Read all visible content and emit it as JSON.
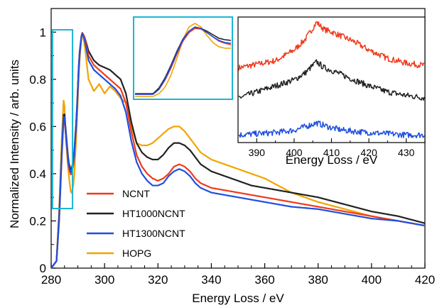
{
  "chart_data": [
    {
      "type": "line",
      "xlabel": "Energy Loss / eV",
      "ylabel": "Normalized Intensity / arb. units",
      "xlim": [
        280,
        420
      ],
      "ylim": [
        0,
        1.1
      ],
      "xticks": [
        "280",
        "300",
        "320",
        "340",
        "360",
        "380",
        "400",
        "420"
      ],
      "yticks": [
        "0",
        "0.2",
        "0.4",
        "0.6",
        "0.8",
        "1"
      ],
      "grid": false,
      "legend_position": "lower-left",
      "series": [
        {
          "name": "NCNT",
          "color": "#f03a1c",
          "x": [
            280,
            282,
            283,
            284,
            284.8,
            285.5,
            286.5,
            287.5,
            288.5,
            289.5,
            290.5,
            291.5,
            292.5,
            294,
            296,
            298,
            300,
            302,
            304,
            306,
            308,
            310,
            312,
            314,
            316,
            318,
            320,
            322,
            324,
            326,
            328,
            330,
            332,
            334,
            336,
            340,
            345,
            350,
            355,
            360,
            365,
            370,
            380,
            390,
            400,
            410,
            420
          ],
          "y": [
            0,
            0.03,
            0.2,
            0.48,
            0.66,
            0.56,
            0.43,
            0.39,
            0.45,
            0.62,
            0.88,
            1.0,
            0.98,
            0.9,
            0.86,
            0.84,
            0.82,
            0.8,
            0.78,
            0.76,
            0.7,
            0.58,
            0.48,
            0.43,
            0.4,
            0.38,
            0.37,
            0.38,
            0.4,
            0.43,
            0.44,
            0.43,
            0.41,
            0.38,
            0.36,
            0.34,
            0.33,
            0.32,
            0.31,
            0.3,
            0.29,
            0.28,
            0.26,
            0.24,
            0.22,
            0.2,
            0.18
          ]
        },
        {
          "name": "HT1000NCNT",
          "color": "#222222",
          "x": [
            280,
            282,
            283,
            284,
            284.8,
            285.5,
            286.5,
            287.5,
            288.5,
            289.5,
            290.5,
            291.5,
            292.5,
            294,
            296,
            298,
            300,
            302,
            304,
            306,
            308,
            310,
            312,
            314,
            316,
            318,
            320,
            322,
            324,
            326,
            328,
            330,
            332,
            334,
            336,
            340,
            345,
            350,
            355,
            360,
            365,
            370,
            380,
            390,
            400,
            410,
            420
          ],
          "y": [
            0,
            0.03,
            0.22,
            0.5,
            0.68,
            0.58,
            0.45,
            0.41,
            0.47,
            0.64,
            0.9,
            1.0,
            0.98,
            0.92,
            0.88,
            0.86,
            0.85,
            0.84,
            0.82,
            0.8,
            0.74,
            0.62,
            0.53,
            0.49,
            0.47,
            0.46,
            0.46,
            0.48,
            0.51,
            0.53,
            0.53,
            0.52,
            0.5,
            0.47,
            0.44,
            0.41,
            0.39,
            0.37,
            0.35,
            0.34,
            0.33,
            0.32,
            0.3,
            0.27,
            0.24,
            0.22,
            0.19
          ]
        },
        {
          "name": "HT1300NCNT",
          "color": "#1f4fe0",
          "x": [
            280,
            282,
            283,
            284,
            284.8,
            285.5,
            286.5,
            287.5,
            288.5,
            289.5,
            290.5,
            291.5,
            292.5,
            294,
            296,
            298,
            300,
            302,
            304,
            306,
            308,
            310,
            312,
            314,
            316,
            318,
            320,
            322,
            324,
            326,
            328,
            330,
            332,
            334,
            336,
            340,
            345,
            350,
            355,
            360,
            365,
            370,
            380,
            390,
            400,
            410,
            420
          ],
          "y": [
            0,
            0.03,
            0.21,
            0.49,
            0.67,
            0.57,
            0.44,
            0.4,
            0.46,
            0.63,
            0.89,
            1.0,
            0.97,
            0.88,
            0.84,
            0.82,
            0.8,
            0.78,
            0.76,
            0.73,
            0.66,
            0.54,
            0.45,
            0.4,
            0.37,
            0.35,
            0.35,
            0.36,
            0.39,
            0.41,
            0.42,
            0.41,
            0.39,
            0.36,
            0.34,
            0.32,
            0.31,
            0.3,
            0.29,
            0.28,
            0.27,
            0.26,
            0.25,
            0.23,
            0.21,
            0.2,
            0.18
          ]
        },
        {
          "name": "HOPG",
          "color": "#f2a400",
          "x": [
            280,
            282,
            283,
            284,
            284.8,
            285.5,
            286.5,
            287.5,
            288.5,
            289.5,
            290.5,
            291.5,
            292.5,
            294,
            296,
            298,
            300,
            302,
            304,
            306,
            308,
            310,
            312,
            314,
            316,
            318,
            320,
            322,
            324,
            326,
            328,
            330,
            332,
            334,
            336,
            340,
            345,
            350,
            355,
            360,
            365,
            370,
            380,
            390,
            400,
            410,
            420
          ],
          "y": [
            0,
            0.03,
            0.25,
            0.56,
            0.74,
            0.55,
            0.4,
            0.31,
            0.36,
            0.58,
            0.86,
            1.0,
            0.95,
            0.8,
            0.75,
            0.78,
            0.74,
            0.77,
            0.75,
            0.72,
            0.7,
            0.6,
            0.53,
            0.52,
            0.52,
            0.53,
            0.55,
            0.57,
            0.59,
            0.6,
            0.6,
            0.58,
            0.55,
            0.52,
            0.49,
            0.46,
            0.44,
            0.42,
            0.4,
            0.38,
            0.35,
            0.32,
            0.28,
            0.25,
            0.22,
            0.2,
            0.18
          ]
        }
      ],
      "annotations": [
        "highlight-box-pre-edge"
      ]
    },
    {
      "type": "line",
      "xlabel": "",
      "ylabel": "",
      "xlim": [
        280,
        296
      ],
      "ylim": [
        0,
        1.1
      ],
      "xticks": [],
      "yticks": [],
      "grid": false,
      "series": [
        {
          "name": "NCNT",
          "color": "#f03a1c",
          "x": [
            283,
            284,
            285,
            286,
            287,
            288,
            289,
            290,
            291,
            292,
            293,
            294,
            295,
            296
          ],
          "y": [
            0.05,
            0.12,
            0.25,
            0.42,
            0.62,
            0.8,
            0.92,
            0.98,
            0.97,
            0.92,
            0.86,
            0.8,
            0.77,
            0.75
          ]
        },
        {
          "name": "HT1000NCNT",
          "color": "#222222",
          "x": [
            283,
            284,
            285,
            286,
            287,
            288,
            289,
            290,
            291,
            292,
            293,
            294,
            295,
            296
          ],
          "y": [
            0.06,
            0.14,
            0.28,
            0.46,
            0.66,
            0.83,
            0.94,
            0.99,
            0.98,
            0.94,
            0.89,
            0.84,
            0.82,
            0.81
          ]
        },
        {
          "name": "HT1300NCNT",
          "color": "#1f4fe0",
          "x": [
            283,
            284,
            285,
            286,
            287,
            288,
            289,
            290,
            291,
            292,
            293,
            294,
            295,
            296
          ],
          "y": [
            0.05,
            0.12,
            0.26,
            0.44,
            0.64,
            0.82,
            0.94,
            1.0,
            0.98,
            0.92,
            0.86,
            0.81,
            0.78,
            0.77
          ]
        },
        {
          "name": "HOPG",
          "color": "#f2a400",
          "x": [
            283,
            284,
            285,
            286,
            287,
            288,
            289,
            290,
            291,
            292,
            293,
            294,
            295,
            296
          ],
          "y": [
            0.02,
            0.06,
            0.15,
            0.32,
            0.56,
            0.82,
            1.0,
            1.05,
            1.0,
            0.88,
            0.78,
            0.72,
            0.7,
            0.7
          ]
        }
      ]
    },
    {
      "type": "line",
      "xlabel": "Energy Loss / eV",
      "ylabel": "",
      "xlim": [
        385,
        435
      ],
      "ylim": [
        0,
        1
      ],
      "xticks": [
        "390",
        "400",
        "410",
        "420",
        "430"
      ],
      "yticks": [],
      "grid": false,
      "series": [
        {
          "name": "NCNT",
          "color": "#f03a1c",
          "x": [
            385,
            390,
            395,
            400,
            403,
            406,
            408,
            410,
            413,
            416,
            420,
            425,
            430,
            435
          ],
          "y": [
            0.6,
            0.63,
            0.66,
            0.75,
            0.84,
            0.98,
            0.92,
            0.9,
            0.86,
            0.82,
            0.75,
            0.68,
            0.64,
            0.62
          ]
        },
        {
          "name": "HT1000NCNT",
          "color": "#222222",
          "x": [
            385,
            390,
            395,
            400,
            403,
            406,
            408,
            410,
            413,
            416,
            420,
            425,
            430,
            435
          ],
          "y": [
            0.35,
            0.4,
            0.45,
            0.5,
            0.56,
            0.65,
            0.6,
            0.58,
            0.54,
            0.5,
            0.45,
            0.4,
            0.37,
            0.35
          ]
        },
        {
          "name": "HT1300NCNT",
          "color": "#1f4fe0",
          "x": [
            385,
            390,
            395,
            400,
            403,
            406,
            408,
            410,
            413,
            416,
            420,
            425,
            430,
            435
          ],
          "y": [
            0.04,
            0.05,
            0.06,
            0.08,
            0.11,
            0.14,
            0.12,
            0.1,
            0.08,
            0.07,
            0.06,
            0.05,
            0.04,
            0.04
          ]
        }
      ]
    }
  ]
}
